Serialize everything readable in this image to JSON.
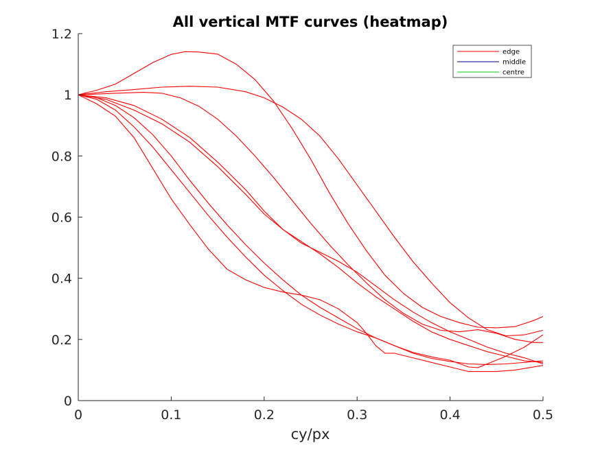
{
  "chart_data": {
    "type": "line",
    "title": "All vertical MTF curves (heatmap)",
    "xlabel": "cy/px",
    "ylabel": "",
    "xlim": [
      0,
      0.5
    ],
    "ylim": [
      0,
      1.2
    ],
    "xticks": [
      0,
      0.1,
      0.2,
      0.3,
      0.4,
      0.5
    ],
    "xtick_labels": [
      "0",
      "0.1",
      "0.2",
      "0.3",
      "0.4",
      "0.5"
    ],
    "yticks": [
      0,
      0.2,
      0.4,
      0.6,
      0.8,
      1.0,
      1.2
    ],
    "ytick_labels": [
      "0",
      "0.2",
      "0.4",
      "0.6",
      "0.8",
      "1",
      "1.2"
    ],
    "grid": false,
    "legend_position": "top-right",
    "legend": [
      {
        "label": "edge",
        "color": "#ff0000"
      },
      {
        "label": "middle",
        "color": "#000080"
      },
      {
        "label": "centre",
        "color": "#00cc00"
      }
    ],
    "series": [
      {
        "color": "#ff0000",
        "points": [
          [
            0,
            1.0
          ],
          [
            0.02,
            1.015
          ],
          [
            0.04,
            1.035
          ],
          [
            0.06,
            1.07
          ],
          [
            0.08,
            1.105
          ],
          [
            0.1,
            1.132
          ],
          [
            0.115,
            1.141
          ],
          [
            0.13,
            1.14
          ],
          [
            0.15,
            1.133
          ],
          [
            0.17,
            1.1
          ],
          [
            0.19,
            1.05
          ],
          [
            0.21,
            0.98
          ],
          [
            0.23,
            0.89
          ],
          [
            0.25,
            0.79
          ],
          [
            0.27,
            0.68
          ],
          [
            0.29,
            0.58
          ],
          [
            0.31,
            0.49
          ],
          [
            0.33,
            0.41
          ],
          [
            0.35,
            0.35
          ],
          [
            0.37,
            0.305
          ],
          [
            0.39,
            0.275
          ],
          [
            0.41,
            0.255
          ],
          [
            0.43,
            0.24
          ],
          [
            0.45,
            0.238
          ],
          [
            0.47,
            0.242
          ],
          [
            0.49,
            0.262
          ],
          [
            0.5,
            0.275
          ]
        ]
      },
      {
        "color": "#ff0000",
        "points": [
          [
            0,
            1.0
          ],
          [
            0.03,
            1.01
          ],
          [
            0.06,
            1.017
          ],
          [
            0.09,
            1.025
          ],
          [
            0.12,
            1.028
          ],
          [
            0.15,
            1.025
          ],
          [
            0.18,
            1.01
          ],
          [
            0.2,
            0.99
          ],
          [
            0.22,
            0.96
          ],
          [
            0.24,
            0.92
          ],
          [
            0.26,
            0.865
          ],
          [
            0.28,
            0.79
          ],
          [
            0.3,
            0.705
          ],
          [
            0.32,
            0.62
          ],
          [
            0.34,
            0.535
          ],
          [
            0.36,
            0.455
          ],
          [
            0.38,
            0.385
          ],
          [
            0.4,
            0.32
          ],
          [
            0.42,
            0.27
          ],
          [
            0.44,
            0.232
          ],
          [
            0.46,
            0.212
          ],
          [
            0.48,
            0.215
          ],
          [
            0.5,
            0.23
          ]
        ]
      },
      {
        "color": "#ff0000",
        "points": [
          [
            0,
            1.0
          ],
          [
            0.04,
            1.005
          ],
          [
            0.07,
            1.008
          ],
          [
            0.09,
            1.005
          ],
          [
            0.11,
            0.99
          ],
          [
            0.13,
            0.962
          ],
          [
            0.15,
            0.92
          ],
          [
            0.17,
            0.865
          ],
          [
            0.19,
            0.8
          ],
          [
            0.21,
            0.73
          ],
          [
            0.23,
            0.655
          ],
          [
            0.25,
            0.58
          ],
          [
            0.27,
            0.51
          ],
          [
            0.29,
            0.445
          ],
          [
            0.31,
            0.385
          ],
          [
            0.33,
            0.33
          ],
          [
            0.35,
            0.285
          ],
          [
            0.37,
            0.25
          ],
          [
            0.39,
            0.23
          ],
          [
            0.41,
            0.225
          ],
          [
            0.43,
            0.232
          ],
          [
            0.45,
            0.22
          ],
          [
            0.47,
            0.2
          ],
          [
            0.49,
            0.19
          ],
          [
            0.5,
            0.19
          ]
        ]
      },
      {
        "color": "#ff0000",
        "points": [
          [
            0,
            1.0
          ],
          [
            0.03,
            0.99
          ],
          [
            0.06,
            0.965
          ],
          [
            0.09,
            0.92
          ],
          [
            0.12,
            0.86
          ],
          [
            0.15,
            0.78
          ],
          [
            0.18,
            0.69
          ],
          [
            0.2,
            0.62
          ],
          [
            0.22,
            0.56
          ],
          [
            0.24,
            0.515
          ],
          [
            0.26,
            0.485
          ],
          [
            0.28,
            0.455
          ],
          [
            0.3,
            0.42
          ],
          [
            0.32,
            0.375
          ],
          [
            0.34,
            0.33
          ],
          [
            0.36,
            0.29
          ],
          [
            0.38,
            0.255
          ],
          [
            0.4,
            0.225
          ],
          [
            0.42,
            0.2
          ],
          [
            0.44,
            0.175
          ],
          [
            0.46,
            0.155
          ],
          [
            0.48,
            0.14
          ],
          [
            0.5,
            0.12
          ]
        ]
      },
      {
        "color": "#ff0000",
        "points": [
          [
            0,
            1.0
          ],
          [
            0.03,
            0.985
          ],
          [
            0.06,
            0.95
          ],
          [
            0.09,
            0.905
          ],
          [
            0.12,
            0.845
          ],
          [
            0.15,
            0.765
          ],
          [
            0.18,
            0.675
          ],
          [
            0.2,
            0.61
          ],
          [
            0.22,
            0.56
          ],
          [
            0.24,
            0.52
          ],
          [
            0.26,
            0.48
          ],
          [
            0.28,
            0.435
          ],
          [
            0.3,
            0.385
          ],
          [
            0.32,
            0.34
          ],
          [
            0.34,
            0.3
          ],
          [
            0.36,
            0.26
          ],
          [
            0.38,
            0.225
          ],
          [
            0.4,
            0.2
          ],
          [
            0.42,
            0.18
          ],
          [
            0.44,
            0.16
          ],
          [
            0.46,
            0.145
          ],
          [
            0.48,
            0.13
          ],
          [
            0.5,
            0.125
          ]
        ]
      },
      {
        "color": "#ff0000",
        "points": [
          [
            0,
            1.0
          ],
          [
            0.02,
            0.99
          ],
          [
            0.04,
            0.965
          ],
          [
            0.06,
            0.925
          ],
          [
            0.08,
            0.87
          ],
          [
            0.1,
            0.8
          ],
          [
            0.12,
            0.72
          ],
          [
            0.14,
            0.645
          ],
          [
            0.16,
            0.575
          ],
          [
            0.18,
            0.51
          ],
          [
            0.2,
            0.45
          ],
          [
            0.22,
            0.395
          ],
          [
            0.24,
            0.345
          ],
          [
            0.26,
            0.305
          ],
          [
            0.28,
            0.27
          ],
          [
            0.3,
            0.235
          ],
          [
            0.32,
            0.205
          ],
          [
            0.34,
            0.18
          ],
          [
            0.36,
            0.155
          ],
          [
            0.38,
            0.138
          ],
          [
            0.4,
            0.128
          ],
          [
            0.42,
            0.12
          ],
          [
            0.44,
            0.118
          ],
          [
            0.46,
            0.12
          ],
          [
            0.48,
            0.125
          ],
          [
            0.5,
            0.13
          ]
        ]
      },
      {
        "color": "#ff0000",
        "points": [
          [
            0,
            1.0
          ],
          [
            0.02,
            0.985
          ],
          [
            0.04,
            0.95
          ],
          [
            0.06,
            0.895
          ],
          [
            0.08,
            0.83
          ],
          [
            0.1,
            0.755
          ],
          [
            0.12,
            0.68
          ],
          [
            0.14,
            0.605
          ],
          [
            0.16,
            0.535
          ],
          [
            0.18,
            0.47
          ],
          [
            0.2,
            0.41
          ],
          [
            0.22,
            0.36
          ],
          [
            0.24,
            0.315
          ],
          [
            0.26,
            0.28
          ],
          [
            0.28,
            0.25
          ],
          [
            0.3,
            0.225
          ],
          [
            0.32,
            0.205
          ],
          [
            0.34,
            0.18
          ],
          [
            0.36,
            0.158
          ],
          [
            0.38,
            0.143
          ],
          [
            0.4,
            0.132
          ],
          [
            0.42,
            0.11
          ],
          [
            0.43,
            0.108
          ],
          [
            0.44,
            0.12
          ],
          [
            0.46,
            0.145
          ],
          [
            0.48,
            0.175
          ],
          [
            0.5,
            0.215
          ]
        ]
      },
      {
        "color": "#ff0000",
        "points": [
          [
            0,
            1.0
          ],
          [
            0.02,
            0.97
          ],
          [
            0.04,
            0.93
          ],
          [
            0.06,
            0.86
          ],
          [
            0.08,
            0.76
          ],
          [
            0.1,
            0.66
          ],
          [
            0.12,
            0.575
          ],
          [
            0.14,
            0.495
          ],
          [
            0.16,
            0.43
          ],
          [
            0.18,
            0.395
          ],
          [
            0.2,
            0.37
          ],
          [
            0.22,
            0.355
          ],
          [
            0.24,
            0.345
          ],
          [
            0.26,
            0.33
          ],
          [
            0.28,
            0.3
          ],
          [
            0.3,
            0.255
          ],
          [
            0.31,
            0.22
          ],
          [
            0.32,
            0.18
          ],
          [
            0.33,
            0.155
          ],
          [
            0.34,
            0.155
          ],
          [
            0.36,
            0.14
          ],
          [
            0.38,
            0.125
          ],
          [
            0.4,
            0.11
          ],
          [
            0.42,
            0.095
          ],
          [
            0.45,
            0.095
          ],
          [
            0.47,
            0.1
          ],
          [
            0.5,
            0.115
          ]
        ]
      }
    ]
  }
}
